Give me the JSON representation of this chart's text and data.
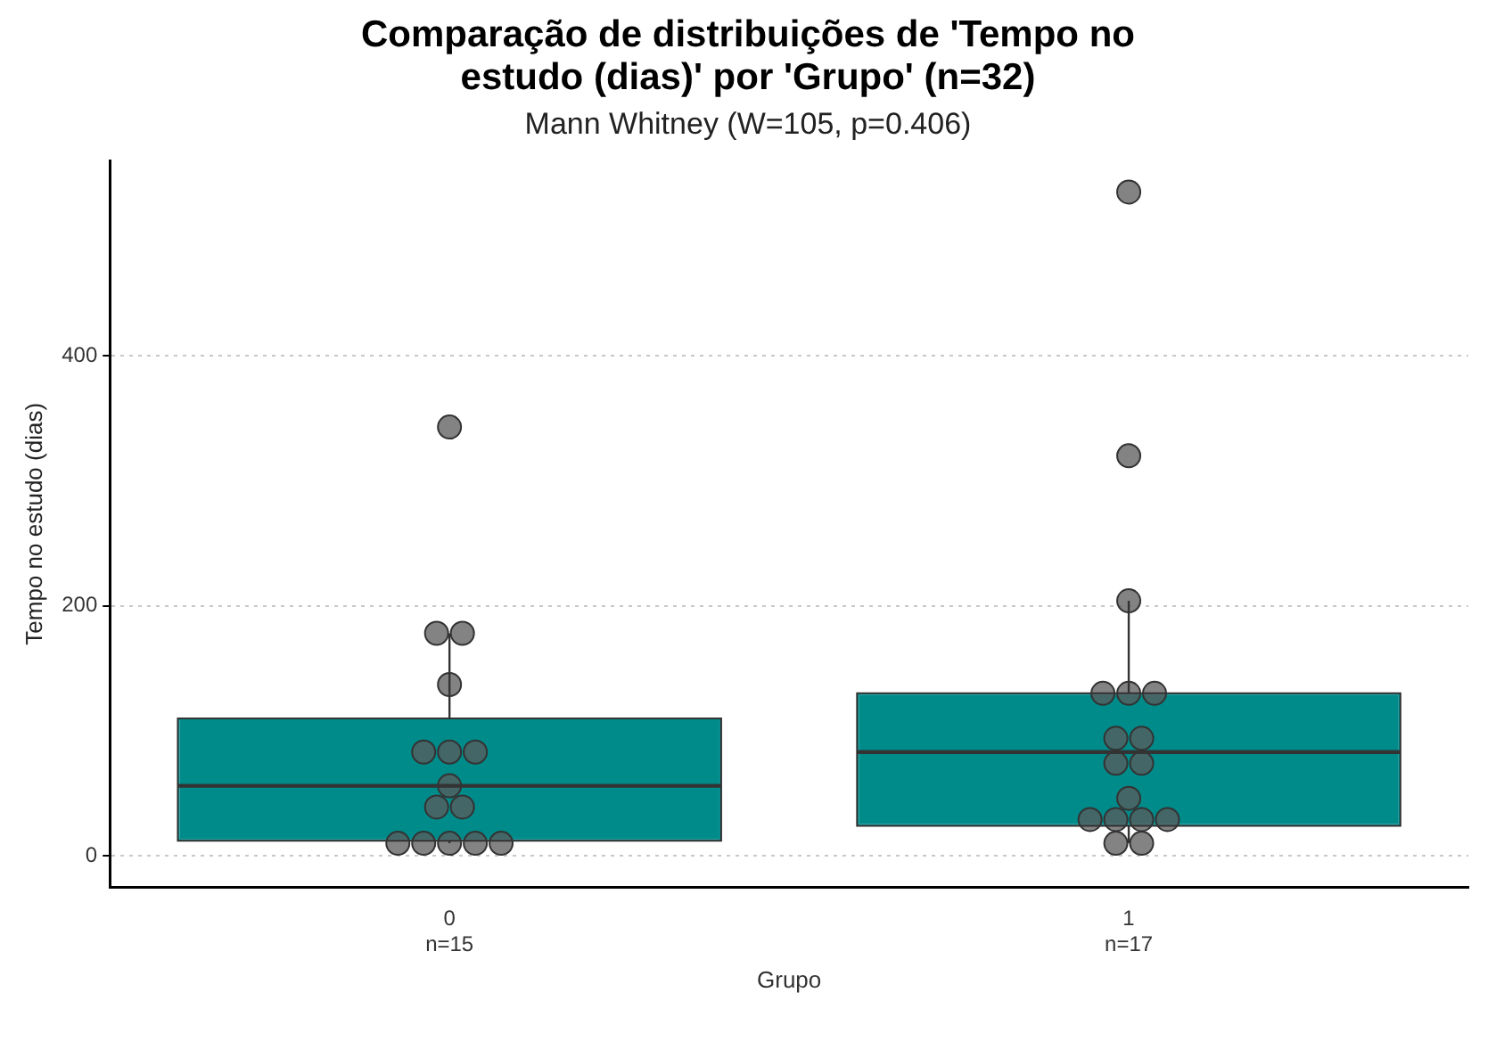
{
  "chart_data": {
    "type": "box",
    "title": "Comparação de distribuições de 'Tempo no estudo (dias)' por 'Grupo' (n=32)",
    "subtitle": "Mann Whitney (W=105, p=0.406)",
    "xlabel": "Grupo",
    "ylabel": "Tempo no estudo (dias)",
    "categories": [
      "0",
      "1"
    ],
    "annotations": [
      "n=15",
      "n=17"
    ],
    "color": "#008b8b",
    "boxes": [
      {
        "low": 10,
        "q1": 12,
        "median": 56,
        "q3": 110,
        "high": 178
      },
      {
        "low": 10,
        "q1": 24,
        "median": 83,
        "q3": 130,
        "high": 204
      }
    ],
    "series": [
      {
        "type": "scatter",
        "color": "#5a5a5a",
        "x": [
          "0",
          "0",
          "0",
          "0",
          "0",
          "0",
          "0",
          "0",
          "0",
          "0",
          "0",
          "0",
          "0",
          "0",
          "0",
          "1",
          "1",
          "1",
          "1",
          "1",
          "1",
          "1",
          "1",
          "1",
          "1",
          "1",
          "1",
          "1",
          "1",
          "1",
          "1",
          "1"
        ],
        "values": [
          343,
          178,
          178,
          137,
          83,
          83,
          83,
          56,
          39,
          39,
          10,
          10,
          10,
          10,
          10,
          531,
          320,
          204,
          130,
          130,
          130,
          94,
          94,
          74,
          74,
          46,
          29,
          29,
          29,
          29,
          10,
          10
        ]
      }
    ],
    "ylim": [
      -25,
      556
    ],
    "yticks": [
      0,
      200,
      400
    ],
    "grid": "y",
    "legend": false,
    "marker": "circle"
  }
}
